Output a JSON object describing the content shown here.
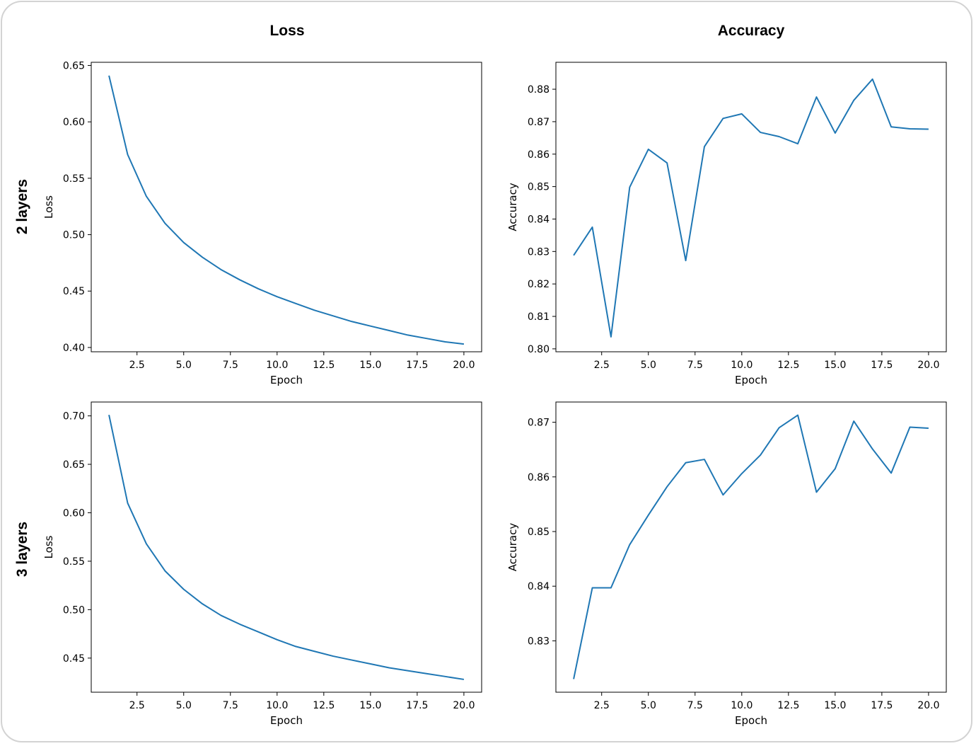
{
  "column_titles": [
    "Loss",
    "Accuracy"
  ],
  "row_labels": [
    "2 layers",
    "3 layers"
  ],
  "series_color": "#1f77b4",
  "chart_data": [
    {
      "type": "line",
      "row": "2 layers",
      "column": "Loss",
      "xlabel": "Epoch",
      "ylabel": "Loss",
      "x": [
        1,
        2,
        3,
        4,
        5,
        6,
        7,
        8,
        9,
        10,
        11,
        12,
        13,
        14,
        15,
        16,
        17,
        18,
        19,
        20
      ],
      "y": [
        0.641,
        0.571,
        0.534,
        0.51,
        0.493,
        0.48,
        0.469,
        0.46,
        0.452,
        0.445,
        0.439,
        0.433,
        0.428,
        0.423,
        0.419,
        0.415,
        0.411,
        0.408,
        0.405,
        0.403
      ],
      "xlim": [
        0.05,
        20.95
      ],
      "ylim": [
        0.3962,
        0.6528
      ],
      "xticks": [
        2.5,
        5.0,
        7.5,
        10.0,
        12.5,
        15.0,
        17.5,
        20.0
      ],
      "xtick_labels": [
        "2.5",
        "5.0",
        "7.5",
        "10.0",
        "12.5",
        "15.0",
        "17.5",
        "20.0"
      ],
      "yticks": [
        0.4,
        0.45,
        0.5,
        0.55,
        0.6,
        0.65
      ],
      "ytick_labels": [
        "0.40",
        "0.45",
        "0.50",
        "0.55",
        "0.60",
        "0.65"
      ]
    },
    {
      "type": "line",
      "row": "2 layers",
      "column": "Accuracy",
      "xlabel": "Epoch",
      "ylabel": "Accuracy",
      "x": [
        1,
        2,
        3,
        4,
        5,
        6,
        7,
        8,
        9,
        10,
        11,
        12,
        13,
        14,
        15,
        16,
        17,
        18,
        19,
        20
      ],
      "y": [
        0.8288,
        0.8375,
        0.8037,
        0.8498,
        0.8615,
        0.8573,
        0.8272,
        0.8623,
        0.871,
        0.8724,
        0.8667,
        0.8654,
        0.8632,
        0.8776,
        0.8665,
        0.8766,
        0.8831,
        0.8684,
        0.8678,
        0.8677
      ],
      "xlim": [
        0.05,
        20.95
      ],
      "ylim": [
        0.7991,
        0.8883
      ],
      "xticks": [
        2.5,
        5.0,
        7.5,
        10.0,
        12.5,
        15.0,
        17.5,
        20.0
      ],
      "xtick_labels": [
        "2.5",
        "5.0",
        "7.5",
        "10.0",
        "12.5",
        "15.0",
        "17.5",
        "20.0"
      ],
      "yticks": [
        0.8,
        0.81,
        0.82,
        0.83,
        0.84,
        0.85,
        0.86,
        0.87,
        0.88
      ],
      "ytick_labels": [
        "0.80",
        "0.81",
        "0.82",
        "0.83",
        "0.84",
        "0.85",
        "0.86",
        "0.87",
        "0.88"
      ]
    },
    {
      "type": "line",
      "row": "3 layers",
      "column": "Loss",
      "xlabel": "Epoch",
      "ylabel": "Loss",
      "x": [
        1,
        2,
        3,
        4,
        5,
        6,
        7,
        8,
        9,
        10,
        11,
        12,
        13,
        14,
        15,
        16,
        17,
        18,
        19,
        20
      ],
      "y": [
        0.701,
        0.61,
        0.568,
        0.54,
        0.521,
        0.506,
        0.494,
        0.485,
        0.477,
        0.469,
        0.462,
        0.457,
        0.452,
        0.448,
        0.444,
        0.44,
        0.437,
        0.434,
        0.431,
        0.428
      ],
      "xlim": [
        0.05,
        20.95
      ],
      "ylim": [
        0.4148,
        0.7143
      ],
      "xticks": [
        2.5,
        5.0,
        7.5,
        10.0,
        12.5,
        15.0,
        17.5,
        20.0
      ],
      "xtick_labels": [
        "2.5",
        "5.0",
        "7.5",
        "10.0",
        "12.5",
        "15.0",
        "17.5",
        "20.0"
      ],
      "yticks": [
        0.45,
        0.5,
        0.55,
        0.6,
        0.65,
        0.7
      ],
      "ytick_labels": [
        "0.45",
        "0.50",
        "0.55",
        "0.60",
        "0.65",
        "0.70"
      ]
    },
    {
      "type": "line",
      "row": "3 layers",
      "column": "Accuracy",
      "xlabel": "Epoch",
      "ylabel": "Accuracy",
      "x": [
        1,
        2,
        3,
        4,
        5,
        6,
        7,
        8,
        9,
        10,
        11,
        12,
        13,
        14,
        15,
        16,
        17,
        18,
        19,
        20
      ],
      "y": [
        0.823,
        0.8397,
        0.8397,
        0.8476,
        0.853,
        0.8582,
        0.8626,
        0.8632,
        0.8567,
        0.8606,
        0.864,
        0.869,
        0.8713,
        0.8572,
        0.8615,
        0.8702,
        0.8651,
        0.8607,
        0.8691,
        0.8689
      ],
      "xlim": [
        0.05,
        20.95
      ],
      "ylim": [
        0.8206,
        0.8737
      ],
      "xticks": [
        2.5,
        5.0,
        7.5,
        10.0,
        12.5,
        15.0,
        17.5,
        20.0
      ],
      "xtick_labels": [
        "2.5",
        "5.0",
        "7.5",
        "10.0",
        "12.5",
        "15.0",
        "17.5",
        "20.0"
      ],
      "yticks": [
        0.83,
        0.84,
        0.85,
        0.86,
        0.87
      ],
      "ytick_labels": [
        "0.83",
        "0.84",
        "0.85",
        "0.86",
        "0.87"
      ]
    }
  ]
}
